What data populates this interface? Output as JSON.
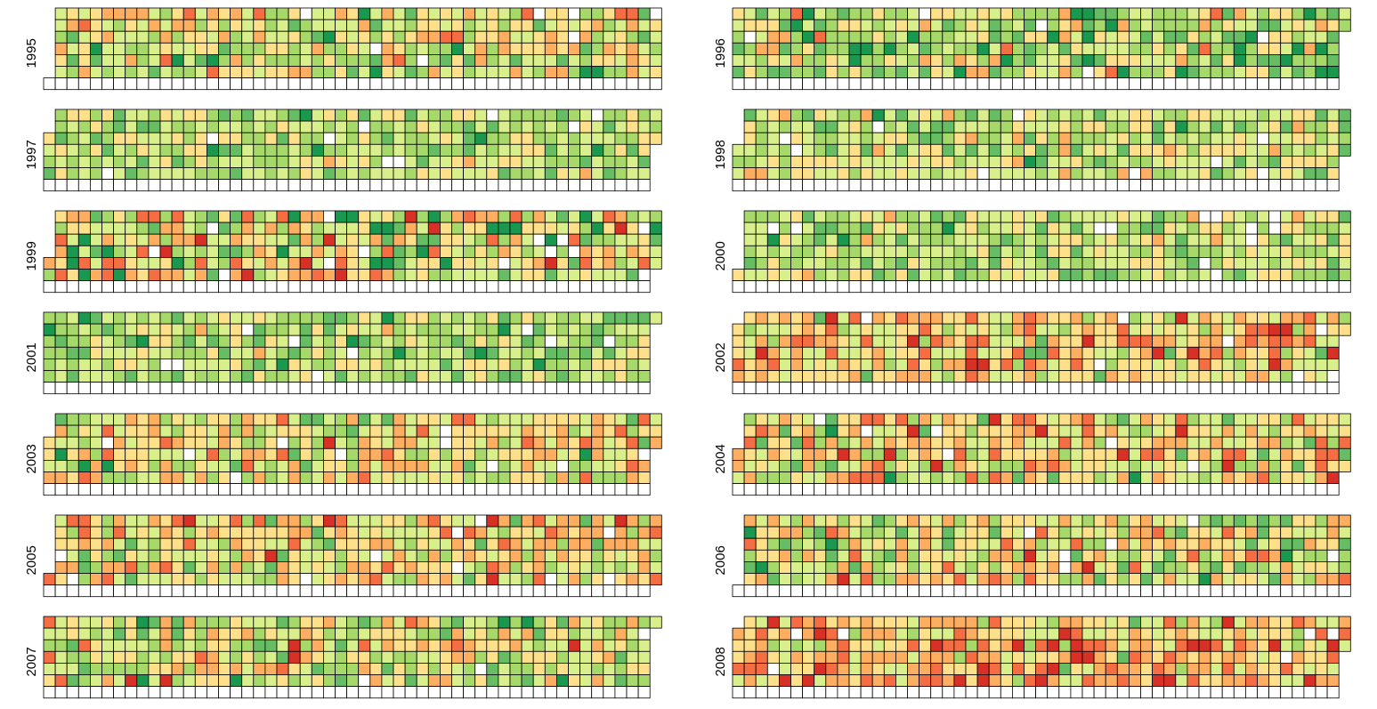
{
  "chart_data": {
    "type": "heatmap",
    "description_layout": "calendar heatmap, one panel per year, weeks as columns, weekdays as rows",
    "value_scale": {
      "min": 0,
      "max": 1,
      "colors": [
        "#d73027",
        "#f46d43",
        "#fdae61",
        "#fee08b",
        "#d9ef8b",
        "#a6d96a",
        "#66bd63",
        "#1a9850"
      ]
    },
    "legend": "none",
    "grid": true,
    "panels": [
      {
        "year": "1995",
        "seed": 1995,
        "mean": 0.55,
        "spread": 0.17
      },
      {
        "year": "1996",
        "seed": 1996,
        "mean": 0.62,
        "spread": 0.18
      },
      {
        "year": "1997",
        "seed": 1997,
        "mean": 0.62,
        "spread": 0.12
      },
      {
        "year": "1998",
        "seed": 1998,
        "mean": 0.58,
        "spread": 0.13
      },
      {
        "year": "1999",
        "seed": 1999,
        "mean": 0.5,
        "spread": 0.22
      },
      {
        "year": "2000",
        "seed": 2000,
        "mean": 0.6,
        "spread": 0.12
      },
      {
        "year": "2001",
        "seed": 2001,
        "mean": 0.63,
        "spread": 0.12
      },
      {
        "year": "2002",
        "seed": 2002,
        "mean": 0.42,
        "spread": 0.16
      },
      {
        "year": "2003",
        "seed": 2003,
        "mean": 0.5,
        "spread": 0.16
      },
      {
        "year": "2004",
        "seed": 2004,
        "mean": 0.45,
        "spread": 0.2
      },
      {
        "year": "2005",
        "seed": 2005,
        "mean": 0.45,
        "spread": 0.18
      },
      {
        "year": "2006",
        "seed": 2006,
        "mean": 0.52,
        "spread": 0.18
      },
      {
        "year": "2007",
        "seed": 2007,
        "mean": 0.55,
        "spread": 0.18
      },
      {
        "year": "2008",
        "seed": 2008,
        "mean": 0.38,
        "spread": 0.16
      }
    ]
  }
}
